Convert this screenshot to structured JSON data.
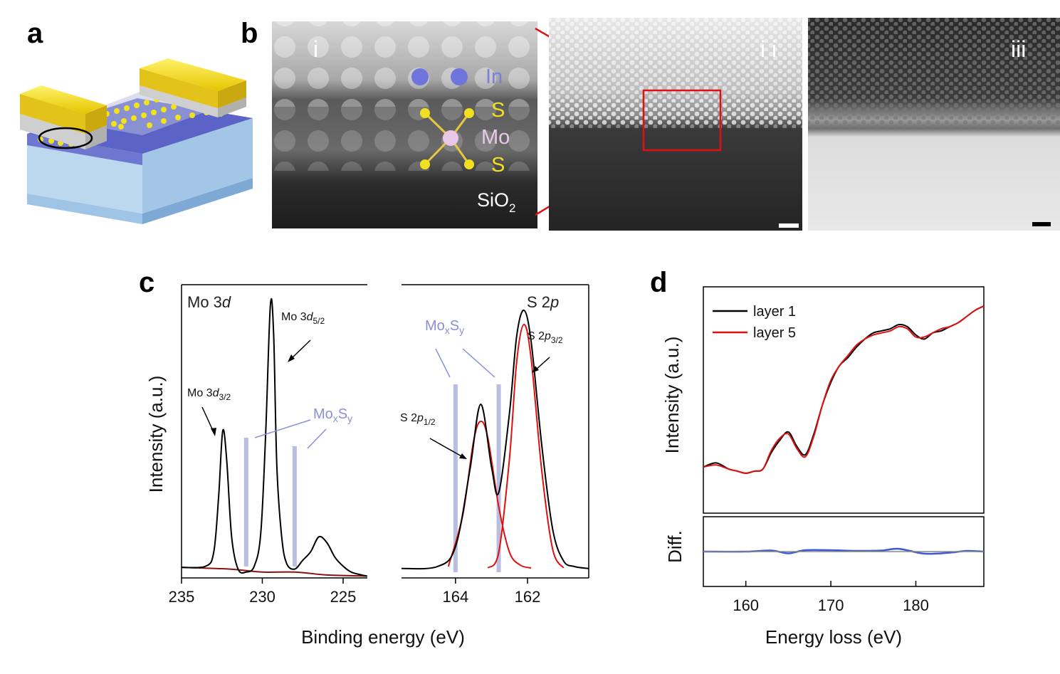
{
  "panels": {
    "a": "a",
    "b": "b",
    "c": "c",
    "d": "d"
  },
  "stem": {
    "i": "i",
    "ii": "i i",
    "iii": "iii",
    "labels": {
      "in": "In",
      "s_top": "S",
      "mo": "Mo",
      "s_bottom": "S",
      "sio": "SiO",
      "sio_sub": "2"
    },
    "colors": {
      "in_atom": "#6f74dd",
      "in_label": "#7c7fd8",
      "s_atom": "#f0e020",
      "mo_atom": "#e8c8e8",
      "zoom": "#e01010"
    }
  },
  "xps": {
    "ylabel": "Intensity (a.u.)",
    "xlabel": "Binding energy (eV)",
    "mo": {
      "title": "Mo 3",
      "title_italic": "d",
      "ticks": [
        "235",
        "230",
        "225"
      ],
      "peak52": {
        "main": "Mo 3",
        "ital": "d",
        "sub": "5/2"
      },
      "peak32": {
        "main": "Mo 3",
        "ital": "d",
        "sub": "3/2"
      },
      "moxsy": {
        "a": "Mo",
        "x": "x",
        "b": "S",
        "y": "y"
      }
    },
    "s": {
      "title": "S 2",
      "title_italic": "p",
      "ticks": [
        "164",
        "162"
      ],
      "peak32": {
        "main": "S 2",
        "ital": "p",
        "sub": "3/2"
      },
      "peak12": {
        "main": "S 2",
        "ital": "p",
        "sub": "1/2"
      },
      "moxsy": {
        "a": "Mo",
        "x": "x",
        "b": "S",
        "y": "y"
      }
    }
  },
  "chart_data": [
    {
      "type": "line",
      "title": "Mo 3d",
      "xlabel": "Binding energy (eV)",
      "ylabel": "Intensity (a.u.)",
      "xlim": [
        235,
        223.5
      ],
      "ylim": [
        0,
        1
      ],
      "x_reversed": true,
      "xticks": [
        235,
        230,
        225
      ],
      "series": [
        {
          "name": "Mo 3d spectrum",
          "x": [
            235,
            233.5,
            233,
            232.7,
            232.45,
            232.2,
            231.9,
            231.5,
            231,
            230.5,
            230.1,
            229.8,
            229.5,
            229.3,
            229.1,
            228.8,
            228.5,
            228,
            227.5,
            227,
            226.5,
            226,
            225.5,
            225,
            224.5,
            224,
            223.5
          ],
          "values": [
            0.036,
            0.04,
            0.09,
            0.28,
            0.502,
            0.4,
            0.14,
            0.03,
            0.02,
            0.04,
            0.15,
            0.48,
            0.93,
            0.83,
            0.38,
            0.14,
            0.05,
            0.03,
            0.06,
            0.09,
            0.14,
            0.12,
            0.07,
            0.04,
            0.02,
            0.012,
            0.006
          ]
        },
        {
          "name": "background",
          "x": [
            235,
            232,
            230,
            228,
            226,
            224,
            223.5
          ],
          "values": [
            0.036,
            0.03,
            0.02,
            0.02,
            0.01,
            0.007,
            0.006
          ]
        }
      ],
      "annotations": [
        "Mo 3d5/2",
        "Mo 3d3/2",
        "MoxSy"
      ],
      "moxsy_markers": [
        231,
        228
      ]
    },
    {
      "type": "line",
      "title": "S 2p",
      "xlabel": "Binding energy (eV)",
      "ylabel": "Intensity (a.u.)",
      "xlim": [
        165.5,
        160.3
      ],
      "ylim": [
        0,
        1
      ],
      "x_reversed": true,
      "xticks": [
        164,
        162
      ],
      "series": [
        {
          "name": "S 2p spectrum",
          "x": [
            165.5,
            164.5,
            164,
            163.6,
            163.3,
            163,
            162.8,
            162.5,
            162.3,
            162.1,
            161.9,
            161.6,
            161.3,
            161,
            160.7,
            160.3
          ],
          "values": [
            0.003,
            0.01,
            0.08,
            0.35,
            0.58,
            0.36,
            0.27,
            0.55,
            0.82,
            0.91,
            0.8,
            0.43,
            0.14,
            0.03,
            0.01,
            0.003
          ]
        },
        {
          "name": "S 2p1/2 fit",
          "x": [
            164.2,
            163.8,
            163.5,
            163.3,
            163.1,
            162.8,
            162.5,
            162.2,
            161.9
          ],
          "values": [
            0.01,
            0.19,
            0.45,
            0.52,
            0.46,
            0.22,
            0.06,
            0.015,
            0.005
          ]
        },
        {
          "name": "S 2p3/2 fit",
          "x": [
            163.1,
            162.8,
            162.5,
            162.3,
            162.1,
            161.9,
            161.6,
            161.3,
            161
          ],
          "values": [
            0.005,
            0.06,
            0.39,
            0.73,
            0.86,
            0.74,
            0.34,
            0.07,
            0.005
          ]
        }
      ],
      "annotations": [
        "S 2p3/2",
        "S 2p1/2",
        "MoxSy"
      ],
      "moxsy_markers": [
        164,
        162.8
      ]
    },
    {
      "type": "line",
      "xlabel": "Energy loss (eV)",
      "ylabel": "Intensity (a.u.)",
      "xlim": [
        155,
        188
      ],
      "ylim": [
        0,
        1
      ],
      "xticks": [
        160,
        170,
        180
      ],
      "legend": "top-left",
      "series": [
        {
          "name": "layer 1",
          "color": "#000000",
          "x": [
            155,
            156.5,
            158,
            159,
            160,
            161,
            162,
            163,
            164,
            165,
            166,
            167,
            168,
            169,
            170,
            171,
            172,
            173,
            174,
            175,
            176,
            177,
            178,
            179,
            180,
            181,
            182,
            183,
            184,
            185,
            186,
            187,
            188
          ],
          "values": [
            0.22,
            0.24,
            0.21,
            0.2,
            0.19,
            0.2,
            0.21,
            0.29,
            0.35,
            0.39,
            0.32,
            0.28,
            0.38,
            0.52,
            0.63,
            0.71,
            0.75,
            0.8,
            0.84,
            0.87,
            0.88,
            0.89,
            0.91,
            0.9,
            0.86,
            0.84,
            0.87,
            0.88,
            0.9,
            0.92,
            0.95,
            0.98,
            1.0
          ]
        },
        {
          "name": "layer 5",
          "color": "#e01010",
          "x": [
            155,
            156.5,
            158,
            159,
            160,
            161,
            162,
            163,
            164,
            165,
            166,
            167,
            168,
            169,
            170,
            171,
            172,
            173,
            174,
            175,
            176,
            177,
            178,
            179,
            180,
            181,
            182,
            183,
            184,
            185,
            186,
            187,
            188
          ],
          "values": [
            0.22,
            0.23,
            0.21,
            0.2,
            0.19,
            0.2,
            0.21,
            0.3,
            0.36,
            0.38,
            0.31,
            0.27,
            0.37,
            0.52,
            0.64,
            0.71,
            0.76,
            0.81,
            0.84,
            0.86,
            0.87,
            0.88,
            0.9,
            0.89,
            0.85,
            0.85,
            0.87,
            0.89,
            0.9,
            0.92,
            0.95,
            0.98,
            1.0
          ]
        }
      ]
    },
    {
      "type": "line",
      "ylabel": "Diff.",
      "xlim": [
        155,
        188
      ],
      "ylim": [
        -0.1,
        0.1
      ],
      "series": [
        {
          "name": "difference",
          "color": "#3a58d8",
          "x": [
            155,
            160,
            163,
            165,
            167,
            170,
            173,
            176,
            178,
            181,
            184,
            186,
            188
          ],
          "values": [
            0.0,
            0.0,
            0.003,
            -0.005,
            0.004,
            0.004,
            0.002,
            0.003,
            0.008,
            -0.006,
            -0.003,
            0.002,
            0.0
          ]
        }
      ]
    }
  ],
  "eels": {
    "ylabel": "Intensity (a.u.)",
    "diff_label": "Diff.",
    "xlabel": "Energy loss (eV)",
    "ticks": [
      "160",
      "170",
      "180"
    ],
    "legend": [
      "layer 1",
      "layer 5"
    ]
  }
}
